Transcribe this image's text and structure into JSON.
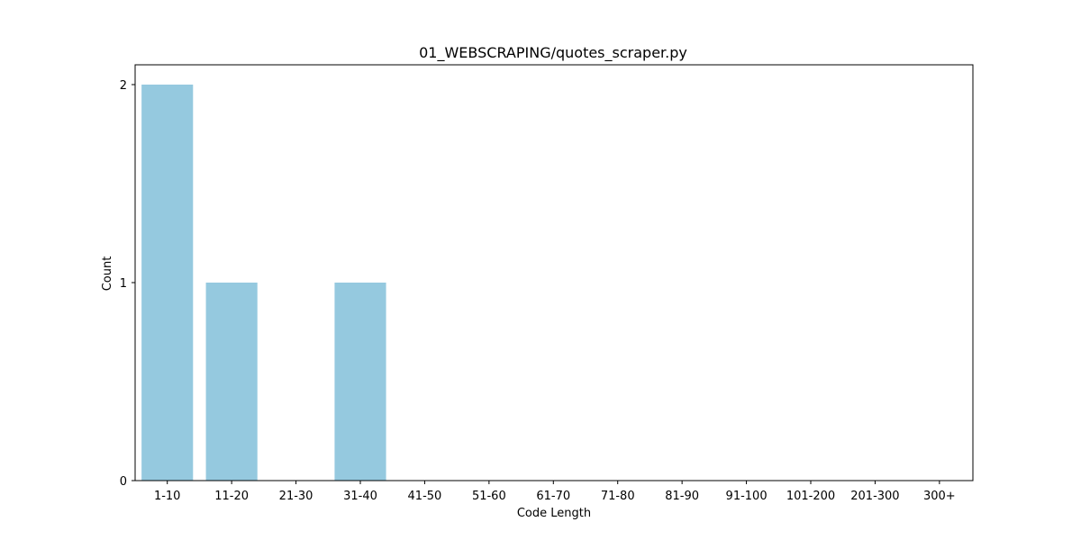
{
  "chart_data": {
    "type": "bar",
    "title": "01_WEBSCRAPING/quotes_scraper.py",
    "xlabel": "Code Length",
    "ylabel": "Count",
    "categories": [
      "1-10",
      "11-20",
      "21-30",
      "31-40",
      "41-50",
      "51-60",
      "61-70",
      "71-80",
      "81-90",
      "91-100",
      "101-200",
      "201-300",
      "300+"
    ],
    "values": [
      2,
      1,
      0,
      1,
      0,
      0,
      0,
      0,
      0,
      0,
      0,
      0,
      0
    ],
    "ylim": [
      0,
      2.1
    ],
    "yticks": [
      0,
      1,
      2
    ],
    "bar_color": "#95c9df",
    "grid": false,
    "legend": "none"
  }
}
